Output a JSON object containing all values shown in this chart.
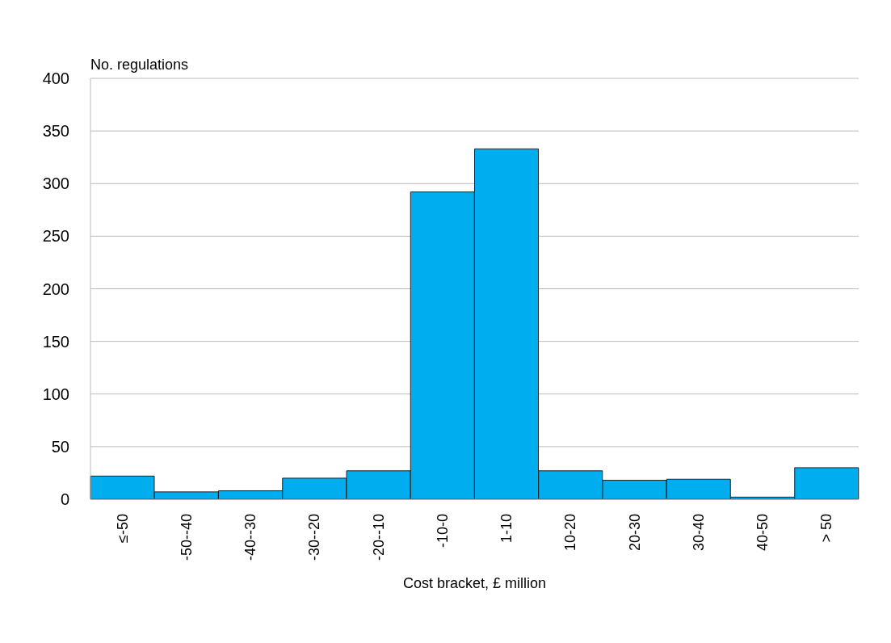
{
  "chart_data": {
    "type": "bar",
    "xlabel": "Cost bracket, £ million",
    "ylabel": "No. regulations",
    "categories": [
      "≤-50",
      "-50--40",
      "-40--30",
      "-30--20",
      "-20--10",
      "-10-0",
      "1-10",
      "10-20",
      "20-30",
      "30-40",
      "40-50",
      "> 50"
    ],
    "values": [
      22,
      7,
      8,
      20,
      27,
      292,
      333,
      27,
      18,
      19,
      2,
      30
    ],
    "color": "#00aeef",
    "ylim": [
      0,
      400
    ],
    "yticks": [
      0,
      50,
      100,
      150,
      200,
      250,
      300,
      350,
      400
    ],
    "grid": "y"
  }
}
